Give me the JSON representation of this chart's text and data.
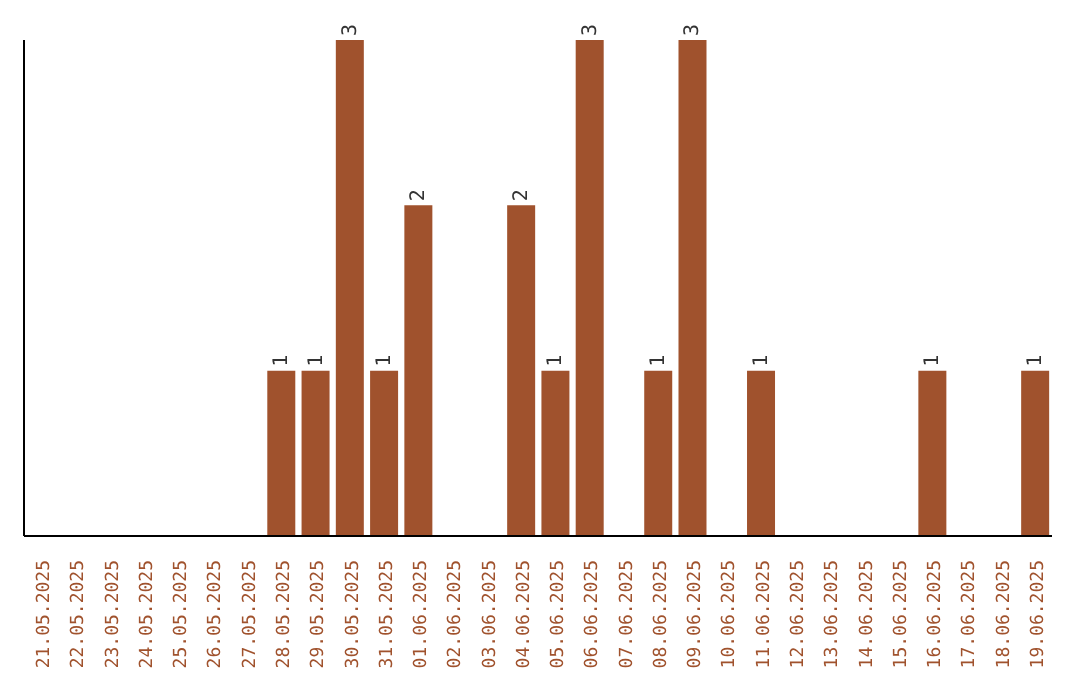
{
  "chart_data": {
    "type": "bar",
    "categories": [
      "21.05.2025",
      "22.05.2025",
      "23.05.2025",
      "24.05.2025",
      "25.05.2025",
      "26.05.2025",
      "27.05.2025",
      "28.05.2025",
      "29.05.2025",
      "30.05.2025",
      "31.05.2025",
      "01.06.2025",
      "02.06.2025",
      "03.06.2025",
      "04.06.2025",
      "05.06.2025",
      "06.06.2025",
      "07.06.2025",
      "08.06.2025",
      "09.06.2025",
      "10.06.2025",
      "11.06.2025",
      "12.06.2025",
      "13.06.2025",
      "14.06.2025",
      "15.06.2025",
      "16.06.2025",
      "17.06.2025",
      "18.06.2025",
      "19.06.2025"
    ],
    "values": [
      0,
      0,
      0,
      0,
      0,
      0,
      0,
      1,
      1,
      3,
      1,
      2,
      0,
      0,
      2,
      1,
      3,
      0,
      1,
      3,
      0,
      1,
      0,
      0,
      0,
      0,
      1,
      0,
      0,
      1
    ],
    "value_labels": [
      null,
      null,
      null,
      null,
      null,
      null,
      null,
      "1",
      "1",
      "3",
      "1",
      "2",
      null,
      null,
      "2",
      "1",
      "3",
      null,
      "1",
      "3",
      null,
      "1",
      null,
      null,
      null,
      null,
      "1",
      null,
      null,
      "1"
    ],
    "color": "#a0522d",
    "ylim": [
      0,
      3
    ],
    "tick_labels": "x"
  }
}
